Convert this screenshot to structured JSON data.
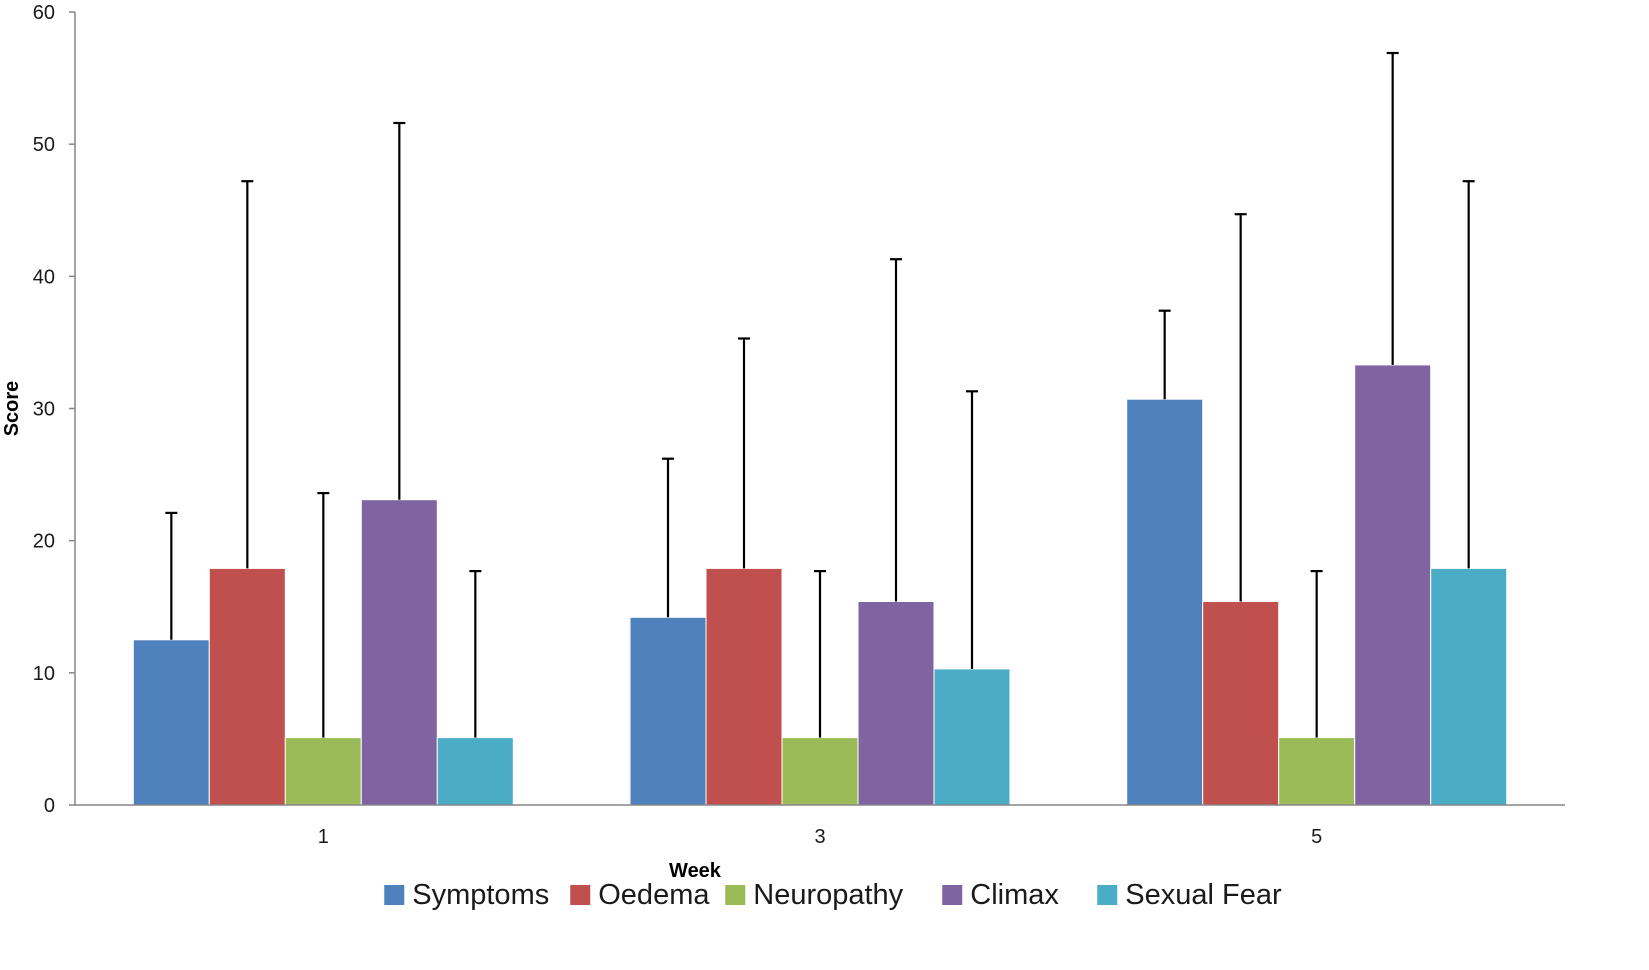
{
  "chart_data": {
    "type": "bar",
    "xlabel": "Week",
    "ylabel": "Score",
    "ylim": [
      0,
      60
    ],
    "yticks": [
      0,
      10,
      20,
      30,
      40,
      50,
      60
    ],
    "categories": [
      "1",
      "3",
      "5"
    ],
    "grid": false,
    "legend_position": "bottom",
    "error_bars": "upper",
    "series": [
      {
        "name": "Symptoms",
        "color": "#4f81bd",
        "values": [
          12.5,
          14.2,
          30.7
        ],
        "error_upper": [
          22.1,
          26.2,
          37.4
        ]
      },
      {
        "name": "Oedema",
        "color": "#c0504d",
        "values": [
          17.9,
          17.9,
          15.4
        ],
        "error_upper": [
          47.2,
          35.3,
          44.7
        ]
      },
      {
        "name": "Neuropathy",
        "color": "#9bbb59",
        "values": [
          5.1,
          5.1,
          5.1
        ],
        "error_upper": [
          23.6,
          17.7,
          17.7
        ]
      },
      {
        "name": "Climax",
        "color": "#8064a2",
        "values": [
          23.1,
          15.4,
          33.3
        ],
        "error_upper": [
          51.6,
          41.3,
          56.9
        ]
      },
      {
        "name": "Sexual Fear",
        "color": "#4bacc6",
        "values": [
          5.1,
          10.3,
          17.9
        ],
        "error_upper": [
          17.7,
          31.3,
          47.2
        ]
      }
    ]
  }
}
